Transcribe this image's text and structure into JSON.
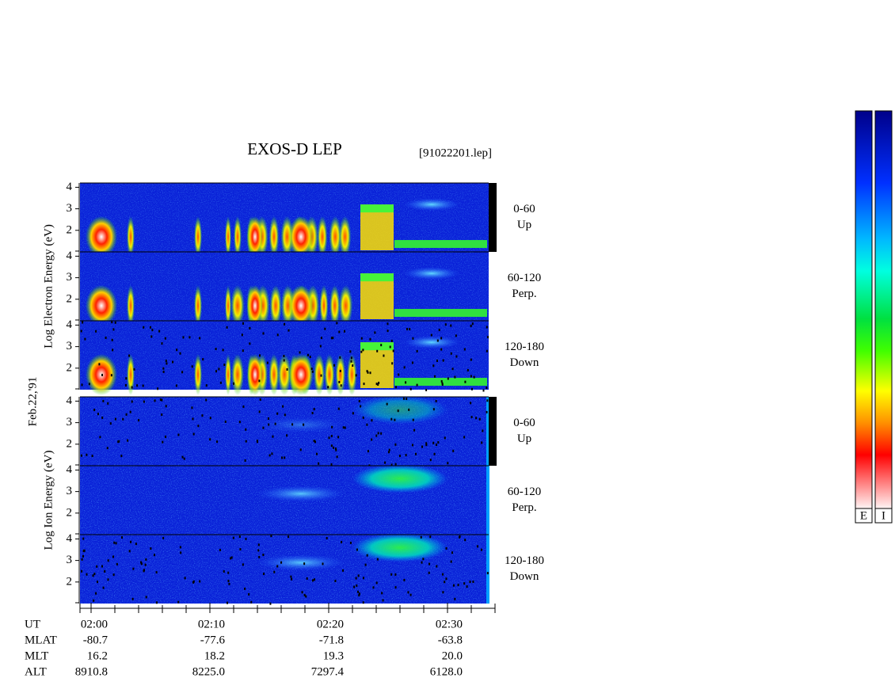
{
  "title": "EXOS-D LEP",
  "file": "[91022201.lep]",
  "date": "Feb.22,'91",
  "ylim": [
    1,
    4.2
  ],
  "yticks": [
    4,
    3,
    2
  ],
  "groups": [
    {
      "label": "Log Electron Energy (eV)",
      "panels": [
        {
          "angle": "0-60",
          "direction": "Up"
        },
        {
          "angle": "60-120",
          "direction": "Perp."
        },
        {
          "angle": "120-180",
          "direction": "Down"
        }
      ]
    },
    {
      "label": "Log Ion Energy (eV)",
      "panels": [
        {
          "angle": "0-60",
          "direction": "Up"
        },
        {
          "angle": "60-120",
          "direction": "Perp."
        },
        {
          "angle": "120-180",
          "direction": "Down"
        }
      ]
    }
  ],
  "ephemeris": [
    {
      "label": "UT",
      "values": [
        "02:00",
        "02:10",
        "02:20",
        "02:30"
      ]
    },
    {
      "label": "MLAT",
      "values": [
        "-80.7",
        "-77.6",
        "-71.8",
        "-63.8"
      ]
    },
    {
      "label": "MLT",
      "values": [
        "16.2",
        "18.2",
        "19.3",
        "20.0"
      ]
    },
    {
      "label": "ALT",
      "values": [
        "8910.8",
        "8225.0",
        "7297.4",
        "6128.0"
      ]
    }
  ],
  "colorbars": [
    "E",
    "I"
  ]
}
